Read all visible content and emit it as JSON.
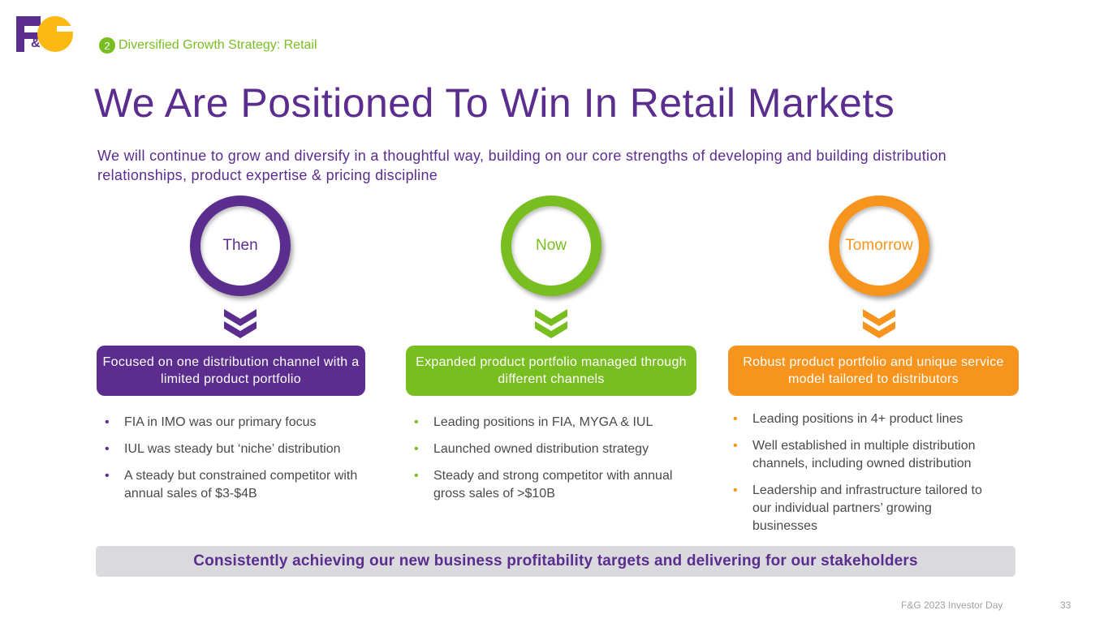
{
  "logo_text": "F&G",
  "section": {
    "number": "2",
    "label": "Diversified Growth Strategy:  Retail"
  },
  "title": "We Are Positioned To Win In Retail Markets",
  "subtitle": "We will continue to grow and diversify in a thoughtful way, building on our core strengths of developing and building distribution relationships, product expertise & pricing discipline",
  "columns": [
    {
      "label": "Then",
      "color": "#5b2d8e",
      "box": "Focused on one distribution channel with a limited product portfolio",
      "bullets": [
        "FIA in IMO was our primary focus",
        "IUL was steady but ‘niche’ distribution",
        "A steady but constrained competitor with annual sales of $3-$4B"
      ]
    },
    {
      "label": "Now",
      "color": "#78be20",
      "box": "Expanded product portfolio managed through different channels",
      "bullets": [
        "Leading positions in FIA, MYGA & IUL",
        "Launched owned distribution strategy",
        "Steady and strong competitor with annual gross sales of >$10B"
      ]
    },
    {
      "label": "Tomorrow",
      "color": "#f7941d",
      "box": "Robust product portfolio and unique service model tailored to distributors",
      "bullets": [
        "Leading positions in 4+ product lines",
        "Well established in multiple distribution channels, including owned distribution",
        "Leadership and infrastructure tailored to our individual partners’ growing businesses"
      ]
    }
  ],
  "banner": "Consistently achieving our new business profitability targets and delivering for our stakeholders",
  "footer": {
    "event": "F&G 2023 Investor Day",
    "page": "33"
  }
}
